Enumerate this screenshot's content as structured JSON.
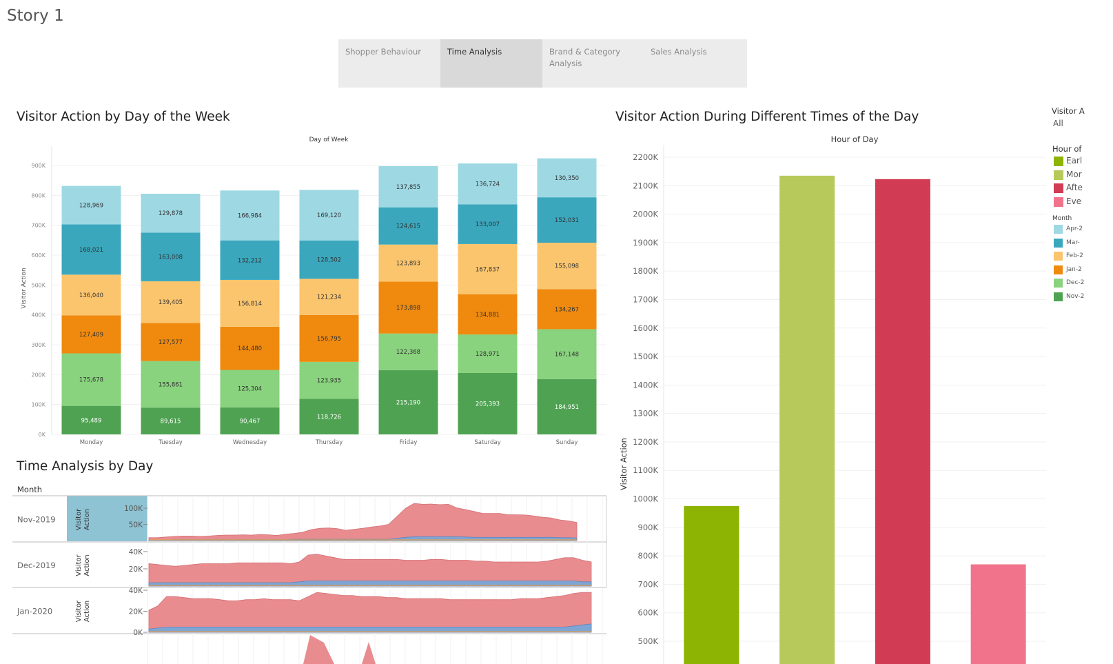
{
  "story": {
    "title": "Story 1"
  },
  "tabs": [
    {
      "label": "Shopper Behaviour",
      "active": false
    },
    {
      "label": "Time Analysis",
      "active": true
    },
    {
      "label": "Brand & Category Analysis",
      "active": false
    },
    {
      "label": "Sales Analysis",
      "active": false
    }
  ],
  "colors": {
    "months": [
      "#4fa252",
      "#89d27e",
      "#ef8a0f",
      "#fbc56e",
      "#3aa7bd",
      "#9dd8e3"
    ],
    "hours": [
      "#8db402",
      "#b7c95a",
      "#d13b54",
      "#f0738b"
    ],
    "area_red": "#e88c8f",
    "area_blue": "#7fa5d3",
    "area_orange": "#e0a252",
    "highlight": "#8ec3d3"
  },
  "legend": {
    "filter_title": "Visitor A",
    "filter_value": "All",
    "hour_title": "Hour of",
    "hour_items": [
      "Earl",
      "Mor",
      "Afte",
      "Eve"
    ],
    "month_title": "Month",
    "month_items": [
      "Apr-2",
      "Mar-",
      "Feb-2",
      "Jan-2",
      "Dec-2",
      "Nov-2"
    ]
  },
  "chart_data": [
    {
      "type": "bar",
      "title": "Visitor Action by Day of the Week",
      "xlabel": "Day of Week",
      "ylabel": "Visitor Action",
      "categories": [
        "Monday",
        "Tuesday",
        "Wednesday",
        "Thursday",
        "Friday",
        "Saturday",
        "Sunday"
      ],
      "stacked": true,
      "ylim": [
        0,
        900000
      ],
      "yticks": [
        "0K",
        "100K",
        "200K",
        "300K",
        "400K",
        "500K",
        "600K",
        "700K",
        "800K",
        "900K"
      ],
      "series": [
        {
          "values": [
            95489,
            89615,
            90467,
            118726,
            215190,
            205393,
            184951
          ],
          "labels": [
            "95,489",
            "89,615",
            "90,467",
            "118,726",
            "215,190",
            "205,393",
            "184,951"
          ]
        },
        {
          "values": [
            175678,
            155861,
            125304,
            123935,
            122368,
            128971,
            167148
          ],
          "labels": [
            "175,678",
            "155,861",
            "125,304",
            "123,935",
            "122,368",
            "128,971",
            "167,148"
          ]
        },
        {
          "values": [
            127409,
            127577,
            144480,
            156795,
            173898,
            134881,
            134267
          ],
          "labels": [
            "127,409",
            "127,577",
            "144,480",
            "156,795",
            "173,898",
            "134,881",
            "134,267"
          ]
        },
        {
          "values": [
            136040,
            139405,
            156814,
            121234,
            123893,
            167837,
            155098
          ],
          "labels": [
            "136,040",
            "139,405",
            "156,814",
            "121,234",
            "123,893",
            "167,837",
            "155,098"
          ]
        },
        {
          "values": [
            168021,
            163008,
            132212,
            128502,
            124615,
            133007,
            152031
          ],
          "labels": [
            "168,021",
            "163,008",
            "132,212",
            "128,502",
            "124,615",
            "133,007",
            "152,031"
          ]
        },
        {
          "values": [
            128969,
            129878,
            166984,
            169120,
            137855,
            136724,
            130350
          ],
          "labels": [
            "128,969",
            "129,878",
            "166,984",
            "169,120",
            "137,855",
            "136,724",
            "130,350"
          ]
        }
      ]
    },
    {
      "type": "bar",
      "title": "Visitor Action During Different Times of the Day",
      "xlabel": "Hour of Day",
      "ylabel": "Visitor Action",
      "categories": [
        "Earl",
        "Mor",
        "Afte",
        "Eve"
      ],
      "values": [
        975000,
        2135000,
        2123000,
        770000
      ],
      "ylim": [
        500000,
        2200000
      ],
      "yticks": [
        "500K",
        "600K",
        "700K",
        "800K",
        "900K",
        "1000K",
        "1100K",
        "1200K",
        "1300K",
        "1400K",
        "1500K",
        "1600K",
        "1700K",
        "1800K",
        "1900K",
        "2000K",
        "2100K",
        "2200K"
      ]
    },
    {
      "type": "area",
      "title": "Time Analysis by Day",
      "row_header": "Month",
      "ylabel": "Visitor Action",
      "rows": [
        {
          "month": "Nov-2019",
          "ylim": [
            0,
            130000
          ],
          "yticks": [
            "100K",
            "50K"
          ],
          "red": [
            9000,
            9000,
            11000,
            13000,
            14000,
            14000,
            13000,
            14000,
            16000,
            17000,
            17000,
            18000,
            17000,
            19000,
            18000,
            16000,
            20000,
            22000,
            26000,
            34000,
            38000,
            39000,
            37000,
            32000,
            35000,
            38000,
            42000,
            45000,
            50000,
            75000,
            100000,
            115000,
            112000,
            113000,
            111000,
            112000,
            101000,
            96000,
            90000,
            84000,
            84000,
            84000,
            80000,
            80000,
            79000,
            76000,
            72000,
            70000,
            64000,
            61000,
            56000
          ],
          "blue": [
            2000,
            2000,
            2000,
            3000,
            3000,
            3000,
            3000,
            3000,
            3000,
            3000,
            3000,
            3000,
            3000,
            3000,
            3000,
            3000,
            3000,
            4000,
            4000,
            4000,
            4000,
            4000,
            4000,
            4000,
            4000,
            4000,
            4000,
            4000,
            4000,
            7000,
            10000,
            12000,
            12000,
            12000,
            12000,
            12000,
            12000,
            11000,
            10000,
            10000,
            10000,
            10000,
            10000,
            10000,
            10000,
            10000,
            10000,
            10000,
            9000,
            9000,
            8000
          ]
        },
        {
          "month": "Dec-2019",
          "ylim": [
            0,
            48000
          ],
          "yticks": [
            "40K",
            "20K"
          ],
          "red": [
            26000,
            25000,
            24000,
            23000,
            24000,
            25000,
            26000,
            26000,
            26000,
            26000,
            27000,
            27000,
            27000,
            27000,
            27000,
            27000,
            26000,
            28000,
            36000,
            37000,
            35000,
            33000,
            31000,
            31000,
            31000,
            31000,
            31000,
            31000,
            31000,
            30000,
            30000,
            30000,
            31000,
            31000,
            30000,
            30000,
            30000,
            29000,
            29000,
            28000,
            28000,
            28000,
            28000,
            28000,
            28000,
            29000,
            31000,
            33000,
            33000,
            30000,
            28000
          ],
          "blue": [
            4000,
            4000,
            4000,
            4000,
            4000,
            4000,
            4000,
            4000,
            4000,
            4000,
            4000,
            4000,
            4000,
            4000,
            4000,
            4000,
            4000,
            5000,
            6000,
            6000,
            6000,
            6000,
            6000,
            6000,
            6000,
            6000,
            6000,
            6000,
            6000,
            6000,
            6000,
            6000,
            6000,
            6000,
            6000,
            6000,
            6000,
            6000,
            6000,
            6000,
            6000,
            6000,
            6000,
            6000,
            6000,
            6000,
            6000,
            6000,
            6000,
            5000,
            5000
          ]
        },
        {
          "month": "Jan-2020",
          "ylim": [
            0,
            40000
          ],
          "yticks": [
            "40K",
            "20K",
            "0K"
          ],
          "red": [
            21000,
            25000,
            34000,
            34000,
            33000,
            32000,
            32000,
            32000,
            31000,
            30000,
            30000,
            31000,
            31000,
            32000,
            31000,
            31000,
            31000,
            30000,
            34000,
            38000,
            37000,
            36000,
            35000,
            35000,
            34000,
            34000,
            34000,
            33000,
            33000,
            32000,
            32000,
            32000,
            32000,
            32000,
            31000,
            31000,
            31000,
            31000,
            31000,
            31000,
            31000,
            31000,
            32000,
            32000,
            32000,
            33000,
            34000,
            35000,
            37000,
            38000,
            38000
          ],
          "blue": [
            3000,
            4000,
            5000,
            5000,
            5000,
            5000,
            5000,
            5000,
            5000,
            5000,
            5000,
            5000,
            5000,
            5000,
            5000,
            5000,
            5000,
            5000,
            5000,
            5000,
            5000,
            5000,
            5000,
            5000,
            5000,
            5000,
            5000,
            5000,
            5000,
            5000,
            5000,
            5000,
            5000,
            5000,
            5000,
            5000,
            5000,
            5000,
            5000,
            5000,
            5000,
            5000,
            5000,
            5000,
            5000,
            5000,
            5000,
            5000,
            6000,
            7000,
            8000
          ]
        }
      ]
    }
  ]
}
